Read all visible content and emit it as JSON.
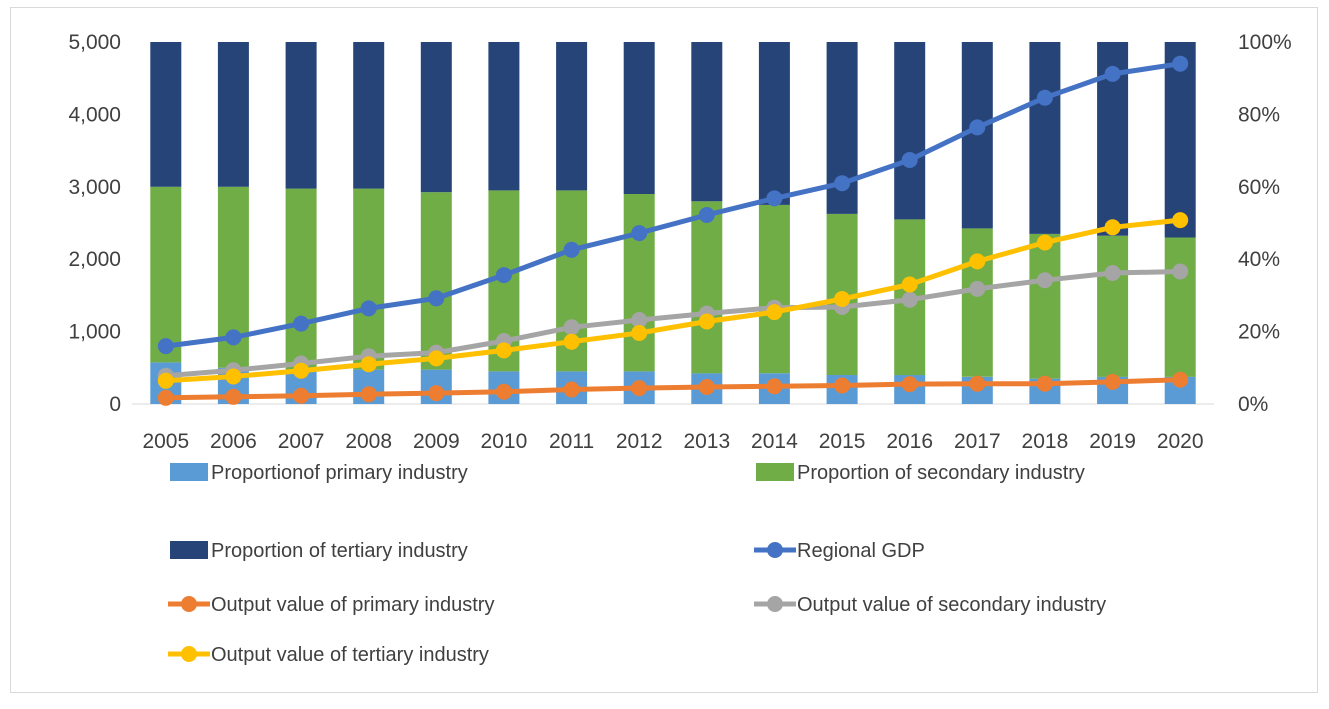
{
  "chart_data": {
    "type": "bar",
    "categories": [
      "2005",
      "2006",
      "2007",
      "2008",
      "2009",
      "2010",
      "2011",
      "2012",
      "2013",
      "2014",
      "2015",
      "2016",
      "2017",
      "2018",
      "2019",
      "2020"
    ],
    "left_axis": {
      "range": [
        0,
        5000
      ],
      "ticks": [
        0,
        1000,
        2000,
        3000,
        4000,
        5000
      ],
      "tick_labels": [
        "0",
        "1,000",
        "2,000",
        "3,000",
        "4,000",
        "5,000"
      ]
    },
    "right_axis": {
      "range": [
        0,
        100
      ],
      "ticks": [
        0,
        20,
        40,
        60,
        80,
        100
      ],
      "tick_labels": [
        "0%",
        "20%",
        "40%",
        "60%",
        "80%",
        "100%"
      ]
    },
    "grid": false,
    "legend_position": "bottom",
    "bar_series": [
      {
        "name": "Proportionof primary industry",
        "color": "#5b9bd5",
        "axis": "right",
        "values": [
          11.5,
          10,
          9.5,
          9.5,
          9.5,
          9,
          9,
          9,
          8.5,
          8.5,
          8,
          8,
          7.5,
          7,
          7.5,
          7.5
        ]
      },
      {
        "name": "Proportion of secondary industry",
        "color": "#70ad47",
        "axis": "right",
        "values": [
          48.5,
          50,
          50,
          50,
          49,
          50,
          50,
          49,
          47.5,
          46.5,
          44.5,
          43,
          41,
          40,
          39,
          38.5
        ]
      },
      {
        "name": "Proportion of tertiary industry",
        "color": "#264478",
        "axis": "right",
        "values": [
          40,
          40,
          40.5,
          40.5,
          41.5,
          41,
          41,
          42,
          44,
          45,
          47.5,
          49,
          51.5,
          53,
          53.5,
          54
        ]
      }
    ],
    "line_series": [
      {
        "name": "Regional GDP",
        "color": "#4472c4",
        "axis": "left",
        "values": [
          800,
          920,
          1110,
          1320,
          1460,
          1780,
          2130,
          2360,
          2610,
          2840,
          3050,
          3370,
          3820,
          4230,
          4560,
          4700
        ]
      },
      {
        "name": "Output value of primary industry",
        "color": "#ed7d31",
        "axis": "left",
        "values": [
          85,
          100,
          115,
          135,
          150,
          170,
          200,
          220,
          235,
          245,
          255,
          275,
          280,
          280,
          305,
          335
        ]
      },
      {
        "name": "Output value of secondary industry",
        "color": "#a5a5a5",
        "axis": "left",
        "values": [
          390,
          465,
          560,
          660,
          710,
          870,
          1060,
          1160,
          1250,
          1330,
          1340,
          1440,
          1590,
          1710,
          1810,
          1830
        ]
      },
      {
        "name": "Output value of tertiary industry",
        "color": "#ffc000",
        "axis": "left",
        "values": [
          320,
          380,
          460,
          550,
          630,
          740,
          860,
          980,
          1140,
          1270,
          1450,
          1650,
          1970,
          2230,
          2440,
          2540
        ]
      }
    ],
    "legend": [
      {
        "label": "Proportionof primary industry",
        "kind": "bar",
        "color": "#5b9bd5"
      },
      {
        "label": "Proportion of secondary industry",
        "kind": "bar",
        "color": "#70ad47"
      },
      {
        "label": "Proportion of tertiary industry",
        "kind": "bar",
        "color": "#264478"
      },
      {
        "label": "Regional GDP",
        "kind": "line",
        "color": "#4472c4"
      },
      {
        "label": "Output value of primary industry",
        "kind": "line",
        "color": "#ed7d31"
      },
      {
        "label": "Output value of secondary industry",
        "kind": "line",
        "color": "#a5a5a5"
      },
      {
        "label": "Output value of tertiary industry",
        "kind": "line",
        "color": "#ffc000"
      }
    ]
  }
}
